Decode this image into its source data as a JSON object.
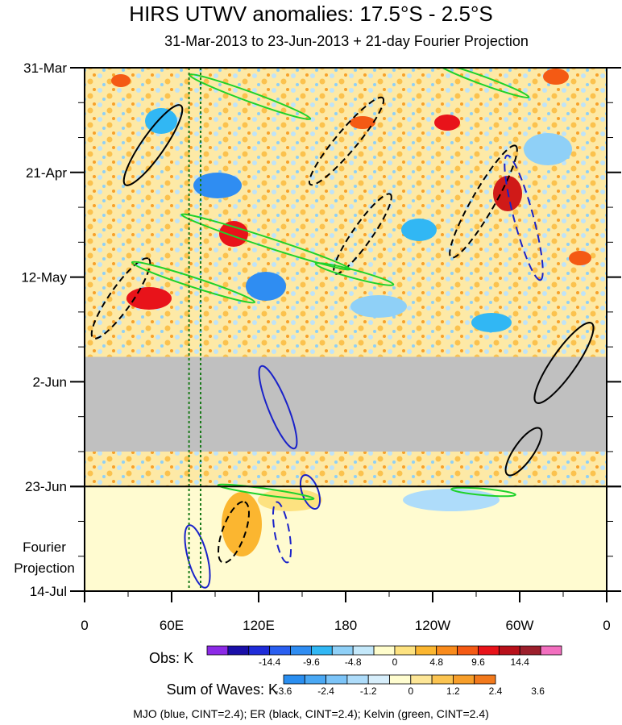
{
  "chart_data": {
    "type": "heatmap",
    "title": "HIRS UTWV anomalies: 17.5°S - 2.5°S",
    "subtitle": "31-Mar-2013 to 23-Jun-2013 + 21-day Fourier Projection",
    "x_tick_labels": [
      "0",
      "60E",
      "120E",
      "180",
      "120W",
      "60W",
      "0"
    ],
    "x_range_deg_east": [
      0,
      360
    ],
    "y_tick_labels": [
      "31-Mar",
      "21-Apr",
      "12-May",
      "2-Jun",
      "23-Jun",
      "14-Jul"
    ],
    "y_range": [
      "31-Mar-2013",
      "14-Jul-2013"
    ],
    "observation_end": "23-Jun",
    "projection_label": [
      "Fourier",
      "Projection"
    ],
    "missing_data_band": [
      "28-May-2013",
      "16-Jun-2013"
    ],
    "reference_longitudes_deg_east": [
      72,
      80
    ],
    "legend_obs": {
      "label": "Obs: K",
      "tick_labels": [
        "-14.4",
        "-9.6",
        "-4.8",
        "0",
        "4.8",
        "9.6",
        "14.4"
      ],
      "colors": [
        "#8c2ae6",
        "#1a0fa8",
        "#1f2cd9",
        "#2a5ff0",
        "#2f8df2",
        "#31b7f4",
        "#8fd0f7",
        "#c4e8fa",
        "#fffdcc",
        "#fde280",
        "#fbb630",
        "#f98b1c",
        "#f45a14",
        "#e8131a",
        "#b8101a",
        "#9c1f2c",
        "#f26fbf"
      ]
    },
    "legend_waves": {
      "label": "Sum of Waves: K",
      "tick_labels": [
        "-3.6",
        "-2.4",
        "-1.2",
        "0",
        "1.2",
        "2.4",
        "3.6"
      ],
      "colors": [
        "#2a8ef0",
        "#4aa8f4",
        "#7cc4f8",
        "#aedcfa",
        "#d7eefb",
        "#fffdd0",
        "#fde697",
        "#fbc451",
        "#f79e2a",
        "#f2791c"
      ]
    },
    "contour_key": "MJO (blue, CINT=2.4); ER (black, CINT=2.4); Kelvin (green, CINT=2.4)"
  }
}
